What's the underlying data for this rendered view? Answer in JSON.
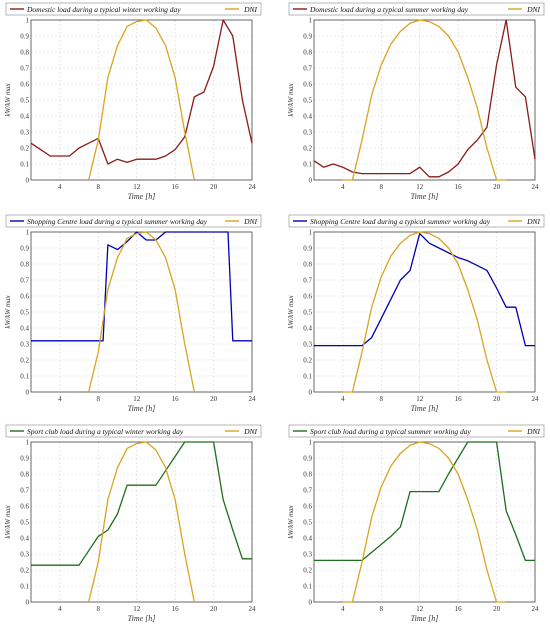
{
  "colors": {
    "domestic": "#8b1a1a",
    "shopping": "#0000b4",
    "sport": "#1e6e1e",
    "dni": "#d9a520"
  },
  "chart_data": [
    {
      "type": "line",
      "title": "",
      "xlabel": "Time [h]",
      "ylabel": "kW/kW max",
      "xlim": [
        1,
        24
      ],
      "ylim": [
        0,
        1
      ],
      "xticks": [
        4,
        8,
        12,
        16,
        20,
        24
      ],
      "yticks": [
        0,
        0.1,
        0.2,
        0.3,
        0.4,
        0.5,
        0.6,
        0.7,
        0.8,
        0.9,
        1
      ],
      "grid": true,
      "legend": "top",
      "series": [
        {
          "name": "Domestic load during a typical winter working day",
          "color": "domestic",
          "x": [
            1,
            2,
            3,
            4,
            5,
            6,
            7,
            8,
            9,
            10,
            11,
            12,
            13,
            14,
            15,
            16,
            17,
            18,
            19,
            20,
            21,
            22,
            23,
            24
          ],
          "y": [
            0.23,
            0.19,
            0.15,
            0.15,
            0.15,
            0.2,
            0.23,
            0.26,
            0.1,
            0.13,
            0.11,
            0.13,
            0.13,
            0.13,
            0.15,
            0.19,
            0.27,
            0.52,
            0.55,
            0.71,
            1.0,
            0.9,
            0.5,
            0.23
          ]
        },
        {
          "name": "DNI",
          "color": "dni",
          "x": [
            7,
            8,
            9,
            10,
            11,
            12,
            13,
            14,
            15,
            16,
            17,
            18
          ],
          "y": [
            0,
            0.25,
            0.64,
            0.84,
            0.96,
            0.99,
            1.0,
            0.95,
            0.84,
            0.64,
            0.3,
            0
          ]
        }
      ]
    },
    {
      "type": "line",
      "title": "",
      "xlabel": "Time [h]",
      "ylabel": "kW/kW max",
      "xlim": [
        1,
        24
      ],
      "ylim": [
        0,
        1
      ],
      "xticks": [
        4,
        8,
        12,
        16,
        20,
        24
      ],
      "yticks": [
        0,
        0.1,
        0.2,
        0.3,
        0.4,
        0.5,
        0.6,
        0.7,
        0.8,
        0.9,
        1
      ],
      "grid": true,
      "legend": "top",
      "series": [
        {
          "name": "Domestic load during a typical summer working day",
          "color": "domestic",
          "x": [
            1,
            2,
            3,
            4,
            5,
            6,
            7,
            8,
            9,
            10,
            11,
            12,
            13,
            14,
            15,
            16,
            17,
            18,
            19,
            20,
            21,
            22,
            23,
            24
          ],
          "y": [
            0.12,
            0.08,
            0.1,
            0.08,
            0.05,
            0.04,
            0.04,
            0.04,
            0.04,
            0.04,
            0.04,
            0.08,
            0.02,
            0.02,
            0.05,
            0.1,
            0.19,
            0.25,
            0.33,
            0.72,
            1.0,
            0.58,
            0.52,
            0.13
          ]
        },
        {
          "name": "DNI",
          "color": "dni",
          "x": [
            4,
            5,
            6,
            7,
            8,
            9,
            10,
            11,
            12,
            13,
            14,
            15,
            16,
            17,
            18,
            19,
            20,
            21
          ],
          "y": [
            0,
            0,
            0.25,
            0.53,
            0.72,
            0.85,
            0.93,
            0.98,
            1.0,
            0.99,
            0.96,
            0.9,
            0.8,
            0.64,
            0.45,
            0.2,
            0,
            0
          ]
        }
      ]
    },
    {
      "type": "line",
      "title": "",
      "xlabel": "Time [h]",
      "ylabel": "kW/kW max",
      "xlim": [
        1,
        24
      ],
      "ylim": [
        0,
        1
      ],
      "xticks": [
        4,
        8,
        12,
        16,
        20,
        24
      ],
      "yticks": [
        0,
        0.1,
        0.2,
        0.3,
        0.4,
        0.5,
        0.6,
        0.7,
        0.8,
        0.9,
        1
      ],
      "grid": true,
      "legend": "top",
      "series": [
        {
          "name": "Shopping Centre load during a typical summer working day",
          "color": "shopping",
          "x": [
            1,
            2,
            3,
            4,
            5,
            6,
            7,
            8,
            8.5,
            9,
            10,
            11,
            12,
            13,
            14,
            15,
            16,
            17,
            18,
            19,
            20,
            21,
            21.5,
            22,
            23,
            24
          ],
          "y": [
            0.32,
            0.32,
            0.32,
            0.32,
            0.32,
            0.32,
            0.32,
            0.32,
            0.32,
            0.92,
            0.89,
            0.94,
            1.0,
            0.95,
            0.95,
            1.0,
            1.0,
            1.0,
            1.0,
            1.0,
            1.0,
            1.0,
            1.0,
            0.32,
            0.32,
            0.32
          ]
        },
        {
          "name": "DNI",
          "color": "dni",
          "x": [
            7,
            8,
            9,
            10,
            11,
            12,
            13,
            14,
            15,
            16,
            17,
            18
          ],
          "y": [
            0,
            0.25,
            0.64,
            0.84,
            0.96,
            0.99,
            1.0,
            0.95,
            0.84,
            0.64,
            0.3,
            0
          ]
        }
      ]
    },
    {
      "type": "line",
      "title": "",
      "xlabel": "Time [h]",
      "ylabel": "kW/kW max",
      "xlim": [
        1,
        24
      ],
      "ylim": [
        0,
        1
      ],
      "xticks": [
        4,
        8,
        12,
        16,
        20,
        24
      ],
      "yticks": [
        0,
        0.1,
        0.2,
        0.3,
        0.4,
        0.5,
        0.6,
        0.7,
        0.8,
        0.9,
        1
      ],
      "grid": true,
      "legend": "top",
      "series": [
        {
          "name": "Shopping Centre load during a typical summer working day",
          "color": "shopping",
          "x": [
            1,
            2,
            3,
            4,
            5,
            6,
            7,
            8,
            9,
            10,
            11,
            12,
            13,
            14,
            15,
            16,
            17,
            18,
            19,
            20,
            21,
            22,
            23,
            24
          ],
          "y": [
            0.29,
            0.29,
            0.29,
            0.29,
            0.29,
            0.29,
            0.34,
            0.46,
            0.58,
            0.7,
            0.76,
            0.99,
            0.93,
            0.9,
            0.87,
            0.84,
            0.82,
            0.79,
            0.76,
            0.65,
            0.53,
            0.53,
            0.29,
            0.29
          ]
        },
        {
          "name": "DNI",
          "color": "dni",
          "x": [
            4,
            5,
            6,
            7,
            8,
            9,
            10,
            11,
            12,
            13,
            14,
            15,
            16,
            17,
            18,
            19,
            20,
            21
          ],
          "y": [
            0,
            0,
            0.25,
            0.53,
            0.72,
            0.85,
            0.93,
            0.98,
            1.0,
            0.99,
            0.96,
            0.9,
            0.8,
            0.64,
            0.45,
            0.2,
            0,
            0
          ]
        }
      ]
    },
    {
      "type": "line",
      "title": "",
      "xlabel": "Time [h]",
      "ylabel": "kW/kW max",
      "xlim": [
        1,
        24
      ],
      "ylim": [
        0,
        1
      ],
      "xticks": [
        4,
        8,
        12,
        16,
        20,
        24
      ],
      "yticks": [
        0,
        0.1,
        0.2,
        0.3,
        0.4,
        0.5,
        0.6,
        0.7,
        0.8,
        0.9,
        1
      ],
      "grid": true,
      "legend": "top",
      "series": [
        {
          "name": "Sport club load during a typical winter working day",
          "color": "sport",
          "x": [
            1,
            2,
            3,
            4,
            5,
            6,
            7,
            8,
            9,
            10,
            11,
            12,
            13,
            14,
            15,
            16,
            17,
            18,
            19,
            20,
            21,
            22,
            23,
            24
          ],
          "y": [
            0.23,
            0.23,
            0.23,
            0.23,
            0.23,
            0.23,
            0.32,
            0.41,
            0.45,
            0.55,
            0.73,
            0.73,
            0.73,
            0.73,
            0.82,
            0.91,
            1.0,
            1.0,
            1.0,
            1.0,
            0.64,
            0.45,
            0.27,
            0.27
          ]
        },
        {
          "name": "DNI",
          "color": "dni",
          "x": [
            7,
            8,
            9,
            10,
            11,
            12,
            13,
            14,
            15,
            16,
            17,
            18
          ],
          "y": [
            0,
            0.25,
            0.64,
            0.84,
            0.96,
            0.99,
            1.0,
            0.95,
            0.84,
            0.64,
            0.3,
            0
          ]
        }
      ]
    },
    {
      "type": "line",
      "title": "",
      "xlabel": "Time [h]",
      "ylabel": "kW/kW max",
      "xlim": [
        1,
        24
      ],
      "ylim": [
        0,
        1
      ],
      "xticks": [
        4,
        8,
        12,
        16,
        20,
        24
      ],
      "yticks": [
        0,
        0.1,
        0.2,
        0.3,
        0.4,
        0.5,
        0.6,
        0.7,
        0.8,
        0.9,
        1
      ],
      "grid": true,
      "legend": "top",
      "series": [
        {
          "name": "Sport club load during a typical summer working day",
          "color": "sport",
          "x": [
            1,
            2,
            3,
            4,
            5,
            6,
            7,
            8,
            9,
            10,
            11,
            12,
            13,
            14,
            15,
            16,
            17,
            18,
            19,
            20,
            21,
            22,
            23,
            24
          ],
          "y": [
            0.26,
            0.26,
            0.26,
            0.26,
            0.26,
            0.26,
            0.31,
            0.36,
            0.41,
            0.47,
            0.69,
            0.69,
            0.69,
            0.69,
            0.8,
            0.9,
            1.0,
            1.0,
            1.0,
            1.0,
            0.57,
            0.42,
            0.26,
            0.26
          ]
        },
        {
          "name": "DNI",
          "color": "dni",
          "x": [
            4,
            5,
            6,
            7,
            8,
            9,
            10,
            11,
            12,
            13,
            14,
            15,
            16,
            17,
            18,
            19,
            20,
            21
          ],
          "y": [
            0,
            0,
            0.25,
            0.53,
            0.72,
            0.85,
            0.93,
            0.98,
            1.0,
            0.99,
            0.96,
            0.9,
            0.8,
            0.64,
            0.45,
            0.2,
            0,
            0
          ]
        }
      ]
    }
  ]
}
